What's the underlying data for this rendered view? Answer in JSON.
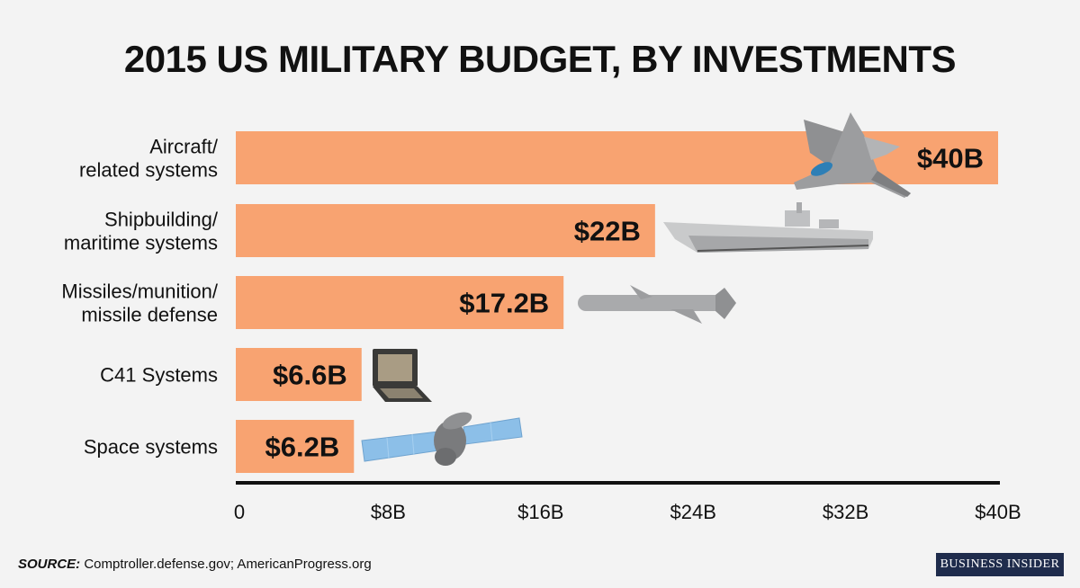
{
  "chart_data": {
    "type": "bar",
    "orientation": "horizontal",
    "title": "2015 US MILITARY BUDGET, BY INVESTMENTS",
    "categories": [
      [
        "Aircraft/",
        "related systems"
      ],
      [
        "Shipbuilding/",
        "maritime systems"
      ],
      [
        "Missiles/munition/",
        "missile defense"
      ],
      [
        "C41 Systems"
      ],
      [
        "Space systems"
      ]
    ],
    "values": [
      40,
      22,
      17.2,
      6.6,
      6.2
    ],
    "value_labels": [
      "$40B",
      "$22B",
      "$17.2B",
      "$6.6B",
      "$6.2B"
    ],
    "icons": [
      "fighter-jet-icon",
      "warship-icon",
      "missile-icon",
      "laptop-icon",
      "satellite-icon"
    ],
    "xlim": [
      0,
      40
    ],
    "ticks": [
      0,
      8,
      16,
      24,
      32,
      40
    ],
    "tick_labels": [
      "0",
      "$8B",
      "$16B",
      "$24B",
      "$32B",
      "$40B"
    ],
    "bar_color": "#f8a371",
    "grid": false
  },
  "source": {
    "label": "SOURCE:",
    "text": " Comptroller.defense.gov; AmericanProgress.org"
  },
  "brand": "BUSINESS INSIDER"
}
